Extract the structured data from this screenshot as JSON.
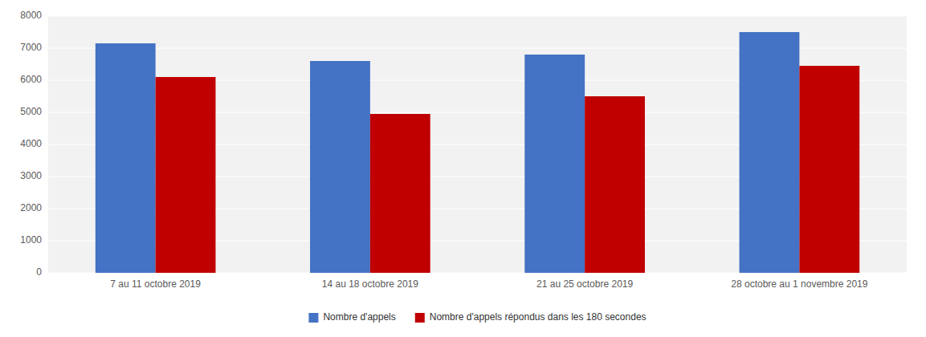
{
  "chart_data": {
    "type": "bar",
    "categories": [
      "7 au 11 octobre 2019",
      "14 au 18 octobre 2019",
      "21 au 25 octobre 2019",
      "28 octobre au 1 novembre 2019"
    ],
    "series": [
      {
        "name": "Nombre d'appels",
        "color": "#4472C4",
        "values": [
          7150,
          6600,
          6800,
          7500
        ]
      },
      {
        "name": "Nombre d'appels répondus dans les 180 secondes",
        "color": "#C00000",
        "values": [
          6100,
          4950,
          5500,
          6450
        ]
      }
    ],
    "ylim": [
      0,
      8000
    ],
    "yticks": [
      0,
      1000,
      2000,
      3000,
      4000,
      5000,
      6000,
      7000,
      8000
    ],
    "grid": true,
    "legend": "bottom"
  }
}
